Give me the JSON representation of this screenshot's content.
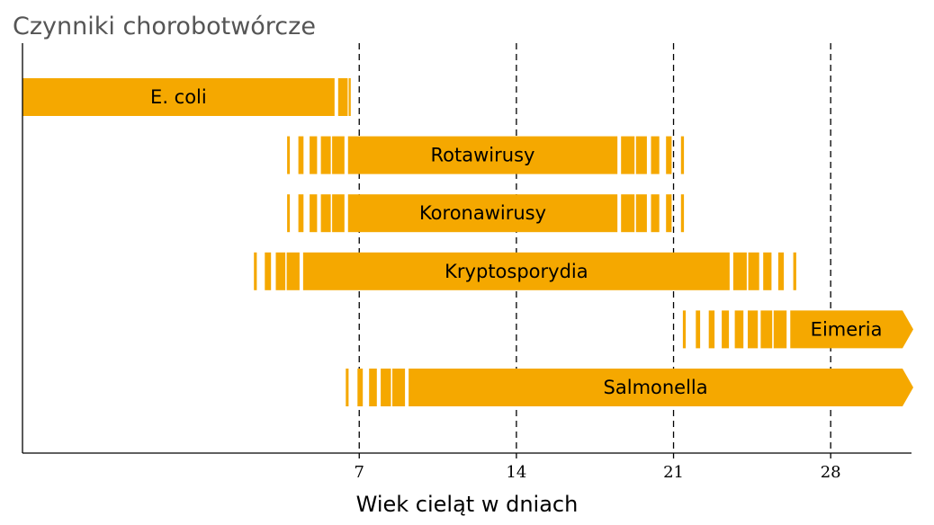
{
  "chart_data": {
    "type": "range-bar",
    "title": "Czynniki chorobotwórcze",
    "xlabel": "Wiek cieląt w dniach",
    "ylabel": "",
    "xlim": [
      -8,
      31.6
    ],
    "xticks": [
      7,
      14,
      21,
      28
    ],
    "grid": "vertical-dashed",
    "bar_color": "#F5A800",
    "series": [
      {
        "label": "E. coli",
        "solid": [
          -8,
          5.9
        ],
        "fade_end": 7,
        "fade_start": null,
        "arrow": false
      },
      {
        "label": "Rotawirusy",
        "solid": [
          6.5,
          18.5
        ],
        "fade_start": 3.3,
        "fade_end": 22,
        "arrow": false
      },
      {
        "label": "Koronawirusy",
        "solid": [
          6.5,
          18.5
        ],
        "fade_start": 3.3,
        "fade_end": 22,
        "arrow": false
      },
      {
        "label": "Kryptosporydia",
        "solid": [
          4.5,
          23.5
        ],
        "fade_start": 1.8,
        "fade_end": 27,
        "arrow": false
      },
      {
        "label": "Eimeria",
        "solid": [
          26.2,
          31.6
        ],
        "fade_start": 20.9,
        "fade_end": null,
        "arrow": true
      },
      {
        "label": "Salmonella",
        "solid": [
          9.2,
          31.6
        ],
        "fade_start": 5.9,
        "fade_end": null,
        "arrow": true
      }
    ]
  }
}
